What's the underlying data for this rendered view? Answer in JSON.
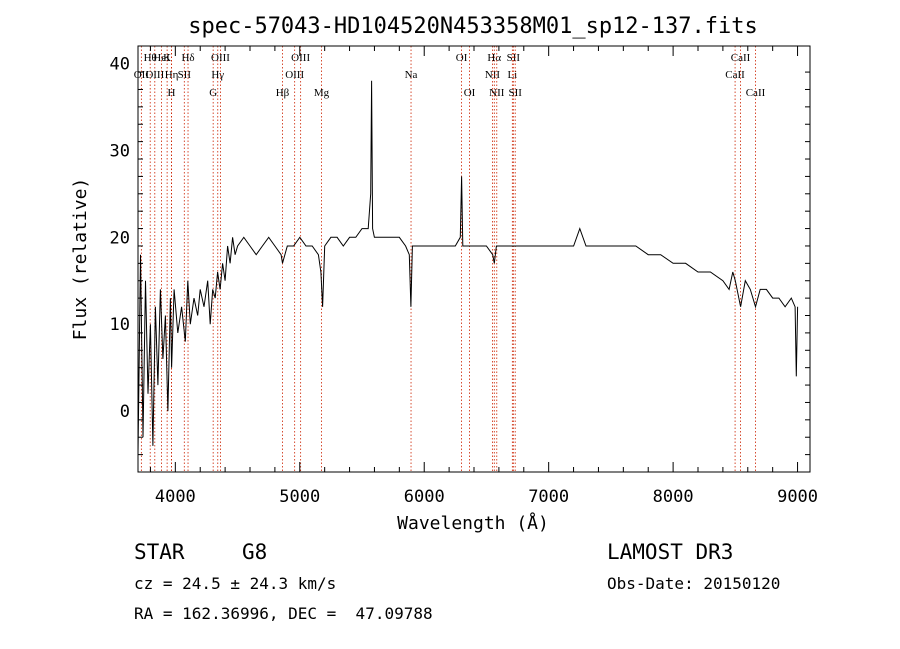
{
  "chart_data": {
    "type": "line",
    "title": "spec-57043-HD104520N453358M01_sp12-137.fits",
    "xlabel": "Wavelength (Å)",
    "ylabel": "Flux (relative)",
    "xlim": [
      3700,
      9100
    ],
    "ylim": [
      -7,
      42
    ],
    "xticks": [
      4000,
      5000,
      6000,
      7000,
      8000,
      9000
    ],
    "yticks": [
      0,
      10,
      20,
      30,
      40
    ],
    "line_color": "#000000",
    "marker_color": "#cc2200",
    "series": [
      {
        "x": [
          3700,
          3720,
          3740,
          3760,
          3780,
          3800,
          3820,
          3840,
          3860,
          3880,
          3900,
          3920,
          3940,
          3960,
          3970,
          3990,
          4020,
          4050,
          4080,
          4100,
          4120,
          4150,
          4180,
          4200,
          4230,
          4260,
          4280,
          4300,
          4320,
          4340,
          4360,
          4380,
          4400,
          4420,
          4440,
          4460,
          4480,
          4500,
          4550,
          4600,
          4650,
          4700,
          4750,
          4800,
          4850,
          4861,
          4900,
          4950,
          5000,
          5050,
          5100,
          5150,
          5170,
          5183,
          5200,
          5250,
          5300,
          5350,
          5400,
          5450,
          5500,
          5550,
          5570,
          5577,
          5585,
          5600,
          5650,
          5700,
          5750,
          5800,
          5850,
          5880,
          5893,
          5905,
          5950,
          6000,
          6050,
          6100,
          6150,
          6200,
          6250,
          6290,
          6300,
          6310,
          6350,
          6400,
          6450,
          6500,
          6550,
          6563,
          6580,
          6650,
          6700,
          6750,
          6800,
          6900,
          7000,
          7100,
          7200,
          7250,
          7300,
          7400,
          7500,
          7600,
          7700,
          7800,
          7900,
          8000,
          8100,
          8200,
          8300,
          8400,
          8450,
          8480,
          8500,
          8542,
          8580,
          8620,
          8662,
          8700,
          8750,
          8800,
          8850,
          8900,
          8950,
          8980,
          8990,
          9000
        ],
        "y": [
          -5,
          18,
          -3,
          15,
          2,
          10,
          -4,
          12,
          3,
          14,
          6,
          11,
          0,
          13,
          5,
          14,
          9,
          12,
          8,
          15,
          10,
          13,
          11,
          14,
          12,
          15,
          10,
          14,
          13,
          16,
          14,
          17,
          15,
          19,
          17,
          20,
          18,
          19,
          20,
          19,
          18,
          19,
          20,
          19,
          18,
          17,
          19,
          19,
          20,
          19,
          19,
          18,
          16,
          12,
          19,
          20,
          20,
          19,
          20,
          20,
          21,
          21,
          25,
          38,
          21,
          20,
          20,
          20,
          20,
          20,
          19,
          18,
          12,
          19,
          19,
          19,
          19,
          19,
          19,
          19,
          19,
          20,
          27,
          19,
          19,
          19,
          19,
          19,
          18,
          17,
          19,
          19,
          19,
          19,
          19,
          19,
          19,
          19,
          19,
          21,
          19,
          19,
          19,
          19,
          19,
          18,
          18,
          17,
          17,
          16,
          16,
          15,
          14,
          16,
          15,
          12,
          15,
          14,
          12,
          14,
          14,
          13,
          13,
          12,
          13,
          12,
          4,
          12
        ]
      }
    ],
    "lines": [
      {
        "label": "OII",
        "x": 3727,
        "row": 2
      },
      {
        "label": "Hθ",
        "x": 3798,
        "row": 1
      },
      {
        "label": "OIII",
        "x": 3835,
        "row": 2
      },
      {
        "label": "HeI",
        "x": 3889,
        "row": 1
      },
      {
        "label": "K",
        "x": 3934,
        "row": 1
      },
      {
        "label": "Hη",
        "x": 3970,
        "row": 2
      },
      {
        "label": "H",
        "x": 3969,
        "row": 3
      },
      {
        "label": "SII",
        "x": 4072,
        "row": 2
      },
      {
        "label": "Hδ",
        "x": 4102,
        "row": 1
      },
      {
        "label": "G",
        "x": 4304,
        "row": 3
      },
      {
        "label": "Hγ",
        "x": 4341,
        "row": 2
      },
      {
        "label": "OIII",
        "x": 4363,
        "row": 1
      },
      {
        "label": "Hβ",
        "x": 4861,
        "row": 3
      },
      {
        "label": "OIII",
        "x": 4959,
        "row": 2
      },
      {
        "label": "OIII",
        "x": 5007,
        "row": 1
      },
      {
        "label": "Mg",
        "x": 5175,
        "row": 3
      },
      {
        "label": "Na",
        "x": 5894,
        "row": 2
      },
      {
        "label": "OI",
        "x": 6300,
        "row": 1
      },
      {
        "label": "OI",
        "x": 6364,
        "row": 3
      },
      {
        "label": "NII",
        "x": 6548,
        "row": 2
      },
      {
        "label": "Hα",
        "x": 6563,
        "row": 1
      },
      {
        "label": "NII",
        "x": 6583,
        "row": 3
      },
      {
        "label": "Li",
        "x": 6708,
        "row": 2
      },
      {
        "label": "SII",
        "x": 6716,
        "row": 1
      },
      {
        "label": "SII",
        "x": 6731,
        "row": 3
      },
      {
        "label": "CaII",
        "x": 8498,
        "row": 2
      },
      {
        "label": "CaII",
        "x": 8542,
        "row": 1
      },
      {
        "label": "CaII",
        "x": 8662,
        "row": 3
      }
    ]
  },
  "info": {
    "class_label": "STAR",
    "subclass": "G8",
    "survey": "LAMOST DR3",
    "cz": "cz = 24.5 ± 24.3 km/s",
    "obs_date": "Obs-Date: 20150120",
    "coords": "RA = 162.36996, DEC =  47.09788"
  }
}
